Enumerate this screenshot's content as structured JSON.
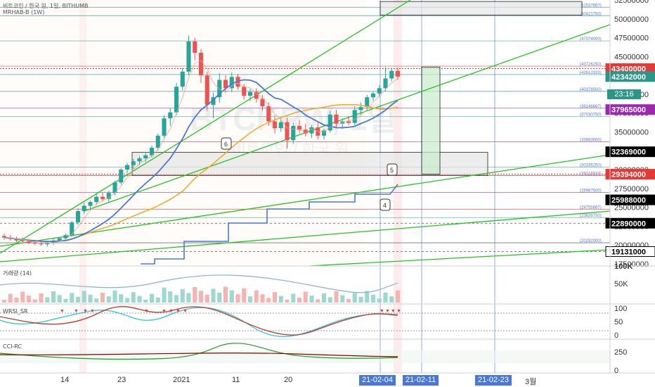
{
  "header": {
    "title": "비트코인 / 한국 원, 1일, BITHUMB",
    "indicator": "MRHAB-B (1W)"
  },
  "watermark": {
    "symbol": "BTCKRW, 1일",
    "name": "비트코인 / 한국 원"
  },
  "price_tags": [
    {
      "value": "43400000",
      "color": "#e53935",
      "text_color": "#ffffff"
    },
    {
      "value": "42342000",
      "color": "#2b9688",
      "text_color": "#ffffff"
    },
    {
      "value": "37965000",
      "color": "#9c27b0",
      "text_color": "#ffffff"
    },
    {
      "value": "32369000",
      "color": "#000000",
      "text_color": "#ffffff"
    },
    {
      "value": "29394000",
      "color": "#e53935",
      "text_color": "#ffffff"
    },
    {
      "value": "25988000",
      "color": "#000000",
      "text_color": "#ffffff"
    },
    {
      "value": "22890000",
      "color": "#000000",
      "text_color": "#ffffff"
    },
    {
      "value": "19131000",
      "color": "#ffffff",
      "text_color": "#000000"
    }
  ],
  "countdown": "23:16",
  "y_axis_labels": [
    "52500000",
    "50000000",
    "47500000",
    "45000000",
    "42500000",
    "40000000",
    "37500000",
    "35000000",
    "32500000",
    "30000000",
    "27500000",
    "25000000",
    "22500000",
    "20000000",
    "17500000"
  ],
  "level_labels": [
    "(51537667)",
    "(50421750)",
    "(47074000)",
    "(43726250)",
    "(42610333)",
    "(40378500)",
    "(38146667)",
    "(37030750)",
    "(33683000)",
    "(30335250)",
    "(29219333)",
    "(26987500)",
    "(24755667)",
    "(23639750)",
    "(20292000)"
  ],
  "pattern_labels": [
    "6",
    "5",
    "4"
  ],
  "x_axis": {
    "labels": [
      "14",
      "23",
      "2021",
      "11",
      "20",
      "3월"
    ],
    "highlights": [
      "21-02-04",
      "21-02-11",
      "21-02-23"
    ]
  },
  "panes": {
    "volume": {
      "title": "거래량 (14)",
      "axis": [
        "100K",
        "50K"
      ]
    },
    "rsi": {
      "title": "WRSI_SR",
      "axis": [
        "100",
        "50",
        "0"
      ]
    },
    "cci": {
      "title": "CCI-RC",
      "axis": [
        "250",
        "0"
      ]
    }
  },
  "colors": {
    "up": "#26a69a",
    "down": "#ef5350",
    "blue": "#4a78d9",
    "green_line": "#21c521",
    "orange": "#f5a623"
  },
  "chart_data": {
    "type": "candlestick",
    "interval": "1일",
    "ylim": [
      17500000,
      52500000
    ],
    "candles": [
      {
        "o": 21200000,
        "h": 21500000,
        "l": 20700000,
        "c": 21000000
      },
      {
        "o": 21000000,
        "h": 21300000,
        "l": 20600000,
        "c": 20800000
      },
      {
        "o": 20800000,
        "h": 21100000,
        "l": 20400000,
        "c": 20600000
      },
      {
        "o": 20600000,
        "h": 21000000,
        "l": 20300000,
        "c": 20500000
      },
      {
        "o": 20500000,
        "h": 20800000,
        "l": 20100000,
        "c": 20300000
      },
      {
        "o": 20300000,
        "h": 20700000,
        "l": 20000000,
        "c": 20200000
      },
      {
        "o": 20200000,
        "h": 20600000,
        "l": 19900000,
        "c": 20100000
      },
      {
        "o": 20100000,
        "h": 20500000,
        "l": 19800000,
        "c": 20300000
      },
      {
        "o": 20300000,
        "h": 20800000,
        "l": 20000000,
        "c": 20600000
      },
      {
        "o": 20600000,
        "h": 21100000,
        "l": 20400000,
        "c": 20900000
      },
      {
        "o": 20900000,
        "h": 21500000,
        "l": 20700000,
        "c": 21300000
      },
      {
        "o": 21300000,
        "h": 23200000,
        "l": 21100000,
        "c": 23000000
      },
      {
        "o": 23000000,
        "h": 24900000,
        "l": 22700000,
        "c": 24500000
      },
      {
        "o": 24500000,
        "h": 25600000,
        "l": 24100000,
        "c": 25200000
      },
      {
        "o": 25200000,
        "h": 25900000,
        "l": 24600000,
        "c": 25700000
      },
      {
        "o": 25700000,
        "h": 26800000,
        "l": 25300000,
        "c": 26400000
      },
      {
        "o": 26400000,
        "h": 27000000,
        "l": 25800000,
        "c": 26100000
      },
      {
        "o": 26100000,
        "h": 27200000,
        "l": 25600000,
        "c": 26900000
      },
      {
        "o": 26900000,
        "h": 28500000,
        "l": 26600000,
        "c": 28300000
      },
      {
        "o": 28300000,
        "h": 30200000,
        "l": 28000000,
        "c": 30000000
      },
      {
        "o": 30000000,
        "h": 30900000,
        "l": 29500000,
        "c": 30600000
      },
      {
        "o": 30600000,
        "h": 31400000,
        "l": 30100000,
        "c": 31100000
      },
      {
        "o": 31100000,
        "h": 31800000,
        "l": 30600000,
        "c": 31500000
      },
      {
        "o": 31500000,
        "h": 32200000,
        "l": 31000000,
        "c": 31900000
      },
      {
        "o": 31900000,
        "h": 33200000,
        "l": 31600000,
        "c": 32900000
      },
      {
        "o": 32900000,
        "h": 34800000,
        "l": 32500000,
        "c": 34500000
      },
      {
        "o": 34500000,
        "h": 37200000,
        "l": 34200000,
        "c": 36800000
      },
      {
        "o": 36800000,
        "h": 38200000,
        "l": 35800000,
        "c": 37600000
      },
      {
        "o": 37600000,
        "h": 41500000,
        "l": 37200000,
        "c": 41000000
      },
      {
        "o": 41000000,
        "h": 43500000,
        "l": 40500000,
        "c": 43000000
      },
      {
        "o": 43000000,
        "h": 47800000,
        "l": 42500000,
        "c": 47000000
      },
      {
        "o": 47000000,
        "h": 47500000,
        "l": 44500000,
        "c": 45500000
      },
      {
        "o": 45500000,
        "h": 46000000,
        "l": 41500000,
        "c": 42500000
      },
      {
        "o": 42500000,
        "h": 43000000,
        "l": 37800000,
        "c": 38600000
      },
      {
        "o": 38600000,
        "h": 40200000,
        "l": 36800000,
        "c": 39600000
      },
      {
        "o": 39600000,
        "h": 42800000,
        "l": 38900000,
        "c": 41900000
      },
      {
        "o": 41900000,
        "h": 42500000,
        "l": 40200000,
        "c": 40800000
      },
      {
        "o": 40800000,
        "h": 42900000,
        "l": 40300000,
        "c": 42300000
      },
      {
        "o": 42300000,
        "h": 42700000,
        "l": 40600000,
        "c": 41000000
      },
      {
        "o": 41000000,
        "h": 41400000,
        "l": 39300000,
        "c": 39800000
      },
      {
        "o": 39800000,
        "h": 40700000,
        "l": 39100000,
        "c": 40300000
      },
      {
        "o": 40300000,
        "h": 40800000,
        "l": 38900000,
        "c": 39400000
      },
      {
        "o": 39400000,
        "h": 39900000,
        "l": 37800000,
        "c": 38400000
      },
      {
        "o": 38400000,
        "h": 38900000,
        "l": 35800000,
        "c": 36400000
      },
      {
        "o": 36400000,
        "h": 37200000,
        "l": 34800000,
        "c": 35500000
      },
      {
        "o": 35500000,
        "h": 36800000,
        "l": 35000000,
        "c": 36300000
      },
      {
        "o": 36300000,
        "h": 36900000,
        "l": 32800000,
        "c": 33900000
      },
      {
        "o": 33900000,
        "h": 36200000,
        "l": 33400000,
        "c": 35800000
      },
      {
        "o": 35800000,
        "h": 36600000,
        "l": 34800000,
        "c": 35300000
      },
      {
        "o": 35300000,
        "h": 36100000,
        "l": 34400000,
        "c": 34800000
      },
      {
        "o": 34800000,
        "h": 35900000,
        "l": 34200000,
        "c": 35600000
      },
      {
        "o": 35600000,
        "h": 36200000,
        "l": 34000000,
        "c": 34500000
      },
      {
        "o": 34500000,
        "h": 35400000,
        "l": 34000000,
        "c": 35200000
      },
      {
        "o": 35200000,
        "h": 37800000,
        "l": 34900000,
        "c": 37300000
      },
      {
        "o": 37300000,
        "h": 37900000,
        "l": 35600000,
        "c": 36100000
      },
      {
        "o": 36100000,
        "h": 36800000,
        "l": 35400000,
        "c": 36400000
      },
      {
        "o": 36400000,
        "h": 37100000,
        "l": 35900000,
        "c": 36200000
      },
      {
        "o": 36200000,
        "h": 38400000,
        "l": 35900000,
        "c": 37900000
      },
      {
        "o": 37900000,
        "h": 38900000,
        "l": 37300000,
        "c": 38300000
      },
      {
        "o": 38300000,
        "h": 39900000,
        "l": 37900000,
        "c": 39600000
      },
      {
        "o": 39600000,
        "h": 40400000,
        "l": 39100000,
        "c": 40100000
      },
      {
        "o": 40100000,
        "h": 41200000,
        "l": 39600000,
        "c": 40800000
      },
      {
        "o": 40800000,
        "h": 43600000,
        "l": 40400000,
        "c": 42100000
      },
      {
        "o": 42100000,
        "h": 43500000,
        "l": 41700000,
        "c": 43100000
      },
      {
        "o": 43100000,
        "h": 43500000,
        "l": 41900000,
        "c": 42342000
      }
    ]
  }
}
